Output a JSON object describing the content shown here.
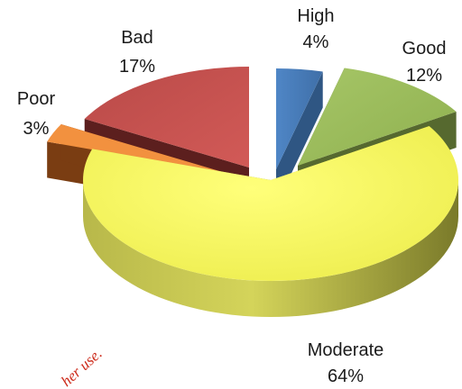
{
  "chart_data": {
    "type": "pie",
    "three_d": true,
    "exploded": true,
    "title": "",
    "slices": [
      {
        "name": "High",
        "value": 4,
        "label_pct": "4%",
        "color": "#4a7ebb"
      },
      {
        "name": "Good",
        "value": 12,
        "label_pct": "12%",
        "color": "#9bbb59"
      },
      {
        "name": "Moderate",
        "value": 64,
        "label_pct": "64%",
        "color": "#ffff66"
      },
      {
        "name": "Poor",
        "value": 3,
        "label_pct": "3%",
        "color": "#f79646"
      },
      {
        "name": "Bad",
        "value": 17,
        "label_pct": "17%",
        "color": "#c0504d"
      }
    ]
  },
  "watermark": {
    "text": "her use."
  }
}
